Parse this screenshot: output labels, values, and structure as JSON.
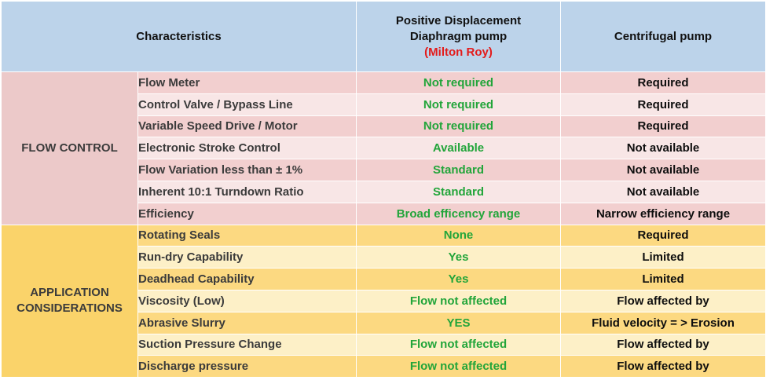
{
  "header": {
    "characteristics": "Characteristics",
    "pd_line1": "Positive Displacement",
    "pd_line2": "Diaphragm pump",
    "pd_brand": "(Milton Roy)",
    "centrifugal": "Centrifugal pump"
  },
  "groups": {
    "flow_control": "FLOW CONTROL",
    "application_line1": "APPLICATION",
    "application_line2": "CONSIDERATIONS"
  },
  "flow_rows": [
    {
      "characteristic": "Flow Meter",
      "pd": "Not required",
      "cf": "Required"
    },
    {
      "characteristic": "Control Valve / Bypass Line",
      "pd": "Not required",
      "cf": "Required"
    },
    {
      "characteristic": "Variable Speed Drive / Motor",
      "pd": "Not required",
      "cf": "Required"
    },
    {
      "characteristic": "Electronic Stroke Control",
      "pd": "Available",
      "cf": "Not available"
    },
    {
      "characteristic": "Flow Variation less than ± 1%",
      "pd": "Standard",
      "cf": "Not available"
    },
    {
      "characteristic": "Inherent 10:1 Turndown Ratio",
      "pd": "Standard",
      "cf": "Not available"
    },
    {
      "characteristic": "Efficiency",
      "pd": "Broad efficency range",
      "cf": "Narrow efficiency range"
    }
  ],
  "app_rows": [
    {
      "characteristic": "Rotating Seals",
      "pd": "None",
      "cf": "Required"
    },
    {
      "characteristic": "Run-dry Capability",
      "pd": "Yes",
      "cf": "Limited"
    },
    {
      "characteristic": "Deadhead Capability",
      "pd": "Yes",
      "cf": "Limited"
    },
    {
      "characteristic": "Viscosity (Low)",
      "pd": "Flow not affected",
      "cf": "Flow affected by"
    },
    {
      "characteristic": "Abrasive Slurry",
      "pd": "YES",
      "cf": "Fluid velocity = > Erosion"
    },
    {
      "characteristic": "Suction Pressure Change",
      "pd": "Flow not affected",
      "cf": "Flow affected by"
    },
    {
      "characteristic": "Discharge pressure",
      "pd": "Flow not affected",
      "cf": "Flow affected by"
    }
  ],
  "colors": {
    "header_bg": "#bcd3ea",
    "flow_group_bg": "#ecc9c9",
    "app_group_bg": "#fad36a",
    "pd_text": "#22a53a",
    "brand_red": "#e31b1b"
  }
}
